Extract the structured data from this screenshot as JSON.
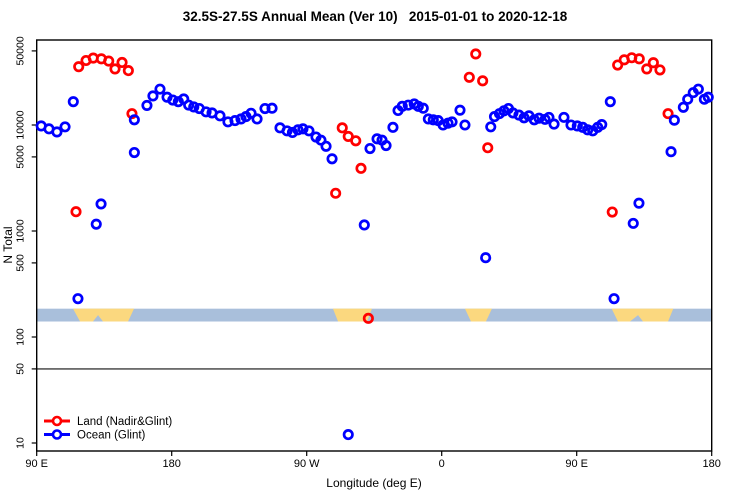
{
  "title": "32.5S-27.5S Annual Mean (Ver 10)   2015-01-01 to 2020-12-18",
  "legend": {
    "items": [
      {
        "label": "Land (Nadir&Glint)",
        "color": "#ff0000"
      },
      {
        "label": "Ocean (Glint)",
        "color": "#0000ff"
      }
    ]
  },
  "chart_data": {
    "type": "scatter",
    "title": "32.5S-27.5S Annual Mean (Ver 10)   2015-01-01 to 2020-12-18",
    "xlabel": "Longitude (deg E)",
    "ylabel": "N Total",
    "y_scale": "log",
    "ylim": [
      8,
      60000
    ],
    "y_ticks": [
      10,
      50,
      100,
      500,
      1000,
      5000,
      10000,
      50000
    ],
    "x_range_deg": [
      0,
      450
    ],
    "x_ticks": [
      [
        0,
        "90 E"
      ],
      [
        90,
        "180"
      ],
      [
        180,
        "90 W"
      ],
      [
        270,
        "0"
      ],
      [
        360,
        "90 E"
      ],
      [
        450,
        "180"
      ]
    ],
    "grid": false,
    "legend_position": "bottom-left",
    "hline_value": 50,
    "hline_color": "#3c3c3c",
    "map_strip": {
      "comment": "land/ocean strip drawn across plot; x in deg from left axis edge (left edge = 90E, axis wraps eastward 450 deg), y fraction 0=top 1=bottom",
      "value_range": [
        140,
        185
      ],
      "ocean_color": "#a9bfdb",
      "land_color": "#fbd87f",
      "land_polygons": [
        [
          [
            24.2,
            0
          ],
          [
            64.9,
            0
          ],
          [
            60.9,
            1
          ],
          [
            44.2,
            1
          ],
          [
            40.9,
            0.5
          ],
          [
            37.5,
            1
          ],
          [
            28.9,
            1
          ]
        ],
        [
          [
            197.5,
            0
          ],
          [
            223.5,
            0
          ],
          [
            220.2,
            1
          ],
          [
            200.9,
            1
          ]
        ],
        [
          [
            285.5,
            0
          ],
          [
            303.5,
            0
          ],
          [
            299.5,
            1
          ],
          [
            289.5,
            1
          ]
        ],
        [
          [
            383.3,
            0
          ],
          [
            424.4,
            0
          ],
          [
            420.9,
            1
          ],
          [
            404.2,
            1
          ],
          [
            400.9,
            0.5
          ],
          [
            395.5,
            1
          ],
          [
            387.5,
            1
          ]
        ]
      ]
    },
    "series": [
      {
        "name": "Land (Nadir&Glint)",
        "color": "#ff0000",
        "points": [
          [
            26.2,
            1520
          ],
          [
            28,
            35500
          ],
          [
            32.9,
            40600
          ],
          [
            37.7,
            42800
          ],
          [
            43.1,
            42100
          ],
          [
            48,
            40100
          ],
          [
            52.2,
            33800
          ],
          [
            56.9,
            38900
          ],
          [
            61.1,
            32600
          ],
          [
            63.5,
            12800
          ],
          [
            199.3,
            2270
          ],
          [
            203.7,
            9400
          ],
          [
            207.7,
            7800
          ],
          [
            212.7,
            7100
          ],
          [
            216.2,
            3900
          ],
          [
            221.1,
            150
          ],
          [
            288.4,
            28200
          ],
          [
            292.7,
            46800
          ],
          [
            297.3,
            26100
          ],
          [
            300.7,
            6100
          ],
          [
            383.7,
            1510
          ],
          [
            387.3,
            36800
          ],
          [
            391.7,
            41200
          ],
          [
            396.7,
            43100
          ],
          [
            401.7,
            42100
          ],
          [
            406.7,
            33800
          ],
          [
            411.1,
            38700
          ],
          [
            415.5,
            33100
          ],
          [
            420.9,
            12800
          ]
        ]
      },
      {
        "name": "Ocean (Glint)",
        "color": "#0000ff",
        "points": [
          [
            3,
            9800
          ],
          [
            8.2,
            9200
          ],
          [
            13.5,
            8600
          ],
          [
            18.9,
            9600
          ],
          [
            24.4,
            16600
          ],
          [
            27.5,
            230
          ],
          [
            39.7,
            1160
          ],
          [
            42.9,
            1800
          ],
          [
            65.1,
            11200
          ],
          [
            65.1,
            5500
          ],
          [
            73.5,
            15300
          ],
          [
            77.5,
            18800
          ],
          [
            82.2,
            21800
          ],
          [
            86.9,
            18300
          ],
          [
            90.7,
            17200
          ],
          [
            94.4,
            16600
          ],
          [
            98,
            17600
          ],
          [
            101.3,
            15400
          ],
          [
            104.7,
            14800
          ],
          [
            108.4,
            14300
          ],
          [
            112.9,
            13300
          ],
          [
            116.9,
            13000
          ],
          [
            122.2,
            12200
          ],
          [
            127.5,
            10700
          ],
          [
            132.2,
            11000
          ],
          [
            136.2,
            11400
          ],
          [
            139.5,
            12000
          ],
          [
            142.9,
            12900
          ],
          [
            146.9,
            11400
          ],
          [
            152.2,
            14300
          ],
          [
            156.9,
            14400
          ],
          [
            162.2,
            9400
          ],
          [
            166.9,
            8800
          ],
          [
            170.5,
            8500
          ],
          [
            174.2,
            9000
          ],
          [
            177.5,
            9200
          ],
          [
            181.5,
            8800
          ],
          [
            186.2,
            7700
          ],
          [
            189.5,
            7200
          ],
          [
            192.9,
            6300
          ],
          [
            196.9,
            4800
          ],
          [
            207.7,
            12
          ],
          [
            218.4,
            1140
          ],
          [
            222.2,
            6000
          ],
          [
            226.9,
            7400
          ],
          [
            230.2,
            7200
          ],
          [
            232.9,
            6400
          ],
          [
            237.5,
            9500
          ],
          [
            240.9,
            13700
          ],
          [
            243.7,
            15000
          ],
          [
            247.7,
            15400
          ],
          [
            251.7,
            15800
          ],
          [
            254.4,
            15000
          ],
          [
            257.7,
            14400
          ],
          [
            261.1,
            11400
          ],
          [
            264.4,
            11200
          ],
          [
            267.7,
            11000
          ],
          [
            270.9,
            10000
          ],
          [
            274.2,
            10400
          ],
          [
            276.9,
            10700
          ],
          [
            282.2,
            13800
          ],
          [
            285.5,
            10000
          ],
          [
            299.3,
            560
          ],
          [
            302.7,
            9600
          ],
          [
            305.2,
            12000
          ],
          [
            308.5,
            12800
          ],
          [
            311.5,
            13600
          ],
          [
            314.5,
            14300
          ],
          [
            317.5,
            13000
          ],
          [
            321.5,
            12400
          ],
          [
            324.9,
            11700
          ],
          [
            328.2,
            12200
          ],
          [
            331.7,
            11200
          ],
          [
            334.9,
            11600
          ],
          [
            338.9,
            11300
          ],
          [
            341.5,
            11800
          ],
          [
            344.9,
            10200
          ],
          [
            351.5,
            11800
          ],
          [
            356.2,
            10000
          ],
          [
            360.4,
            9800
          ],
          [
            364,
            9500
          ],
          [
            367.3,
            9000
          ],
          [
            370.7,
            8800
          ],
          [
            374,
            9500
          ],
          [
            376.7,
            10100
          ],
          [
            382.4,
            16600
          ],
          [
            384.9,
            230
          ],
          [
            397.7,
            1180
          ],
          [
            401.5,
            1830
          ],
          [
            422.9,
            5600
          ],
          [
            425.1,
            11100
          ],
          [
            431.1,
            14700
          ],
          [
            434,
            17500
          ],
          [
            437.7,
            20200
          ],
          [
            441.1,
            21800
          ],
          [
            445.1,
            17500
          ],
          [
            447.7,
            18300
          ]
        ]
      }
    ]
  }
}
